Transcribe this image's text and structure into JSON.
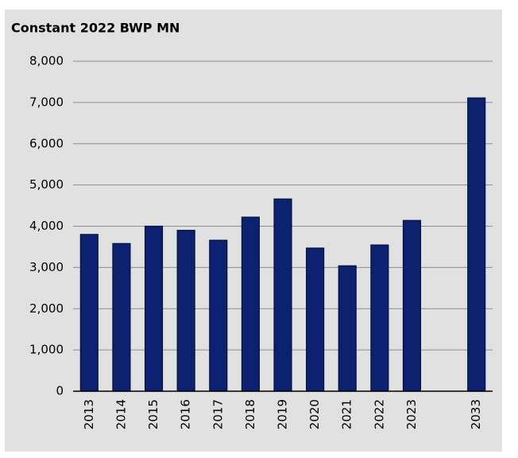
{
  "chart_data": {
    "type": "bar",
    "title": "Constant 2022 BWP MN",
    "categories": [
      "2013",
      "2014",
      "2015",
      "2016",
      "2017",
      "2018",
      "2019",
      "2020",
      "2021",
      "2022",
      "2023",
      null,
      "2033"
    ],
    "values": [
      3800,
      3580,
      4000,
      3900,
      3660,
      4220,
      4660,
      3470,
      3040,
      3545,
      4140,
      null,
      7110
    ],
    "color": "#0c2270",
    "ylim": [
      0,
      8000
    ],
    "yticks": [
      0,
      {
        "value": 1000,
        "label": "1,000"
      },
      {
        "value": 2000,
        "label": "2,000"
      },
      {
        "value": 3000,
        "label": "3,000"
      },
      {
        "value": 4000,
        "label": "4,000"
      },
      {
        "value": 5000,
        "label": "5,000"
      },
      {
        "value": 6000,
        "label": "6,000"
      },
      {
        "value": 7000,
        "label": "7,000"
      },
      {
        "value": 8000,
        "label": "8,000"
      }
    ],
    "grid": true
  }
}
